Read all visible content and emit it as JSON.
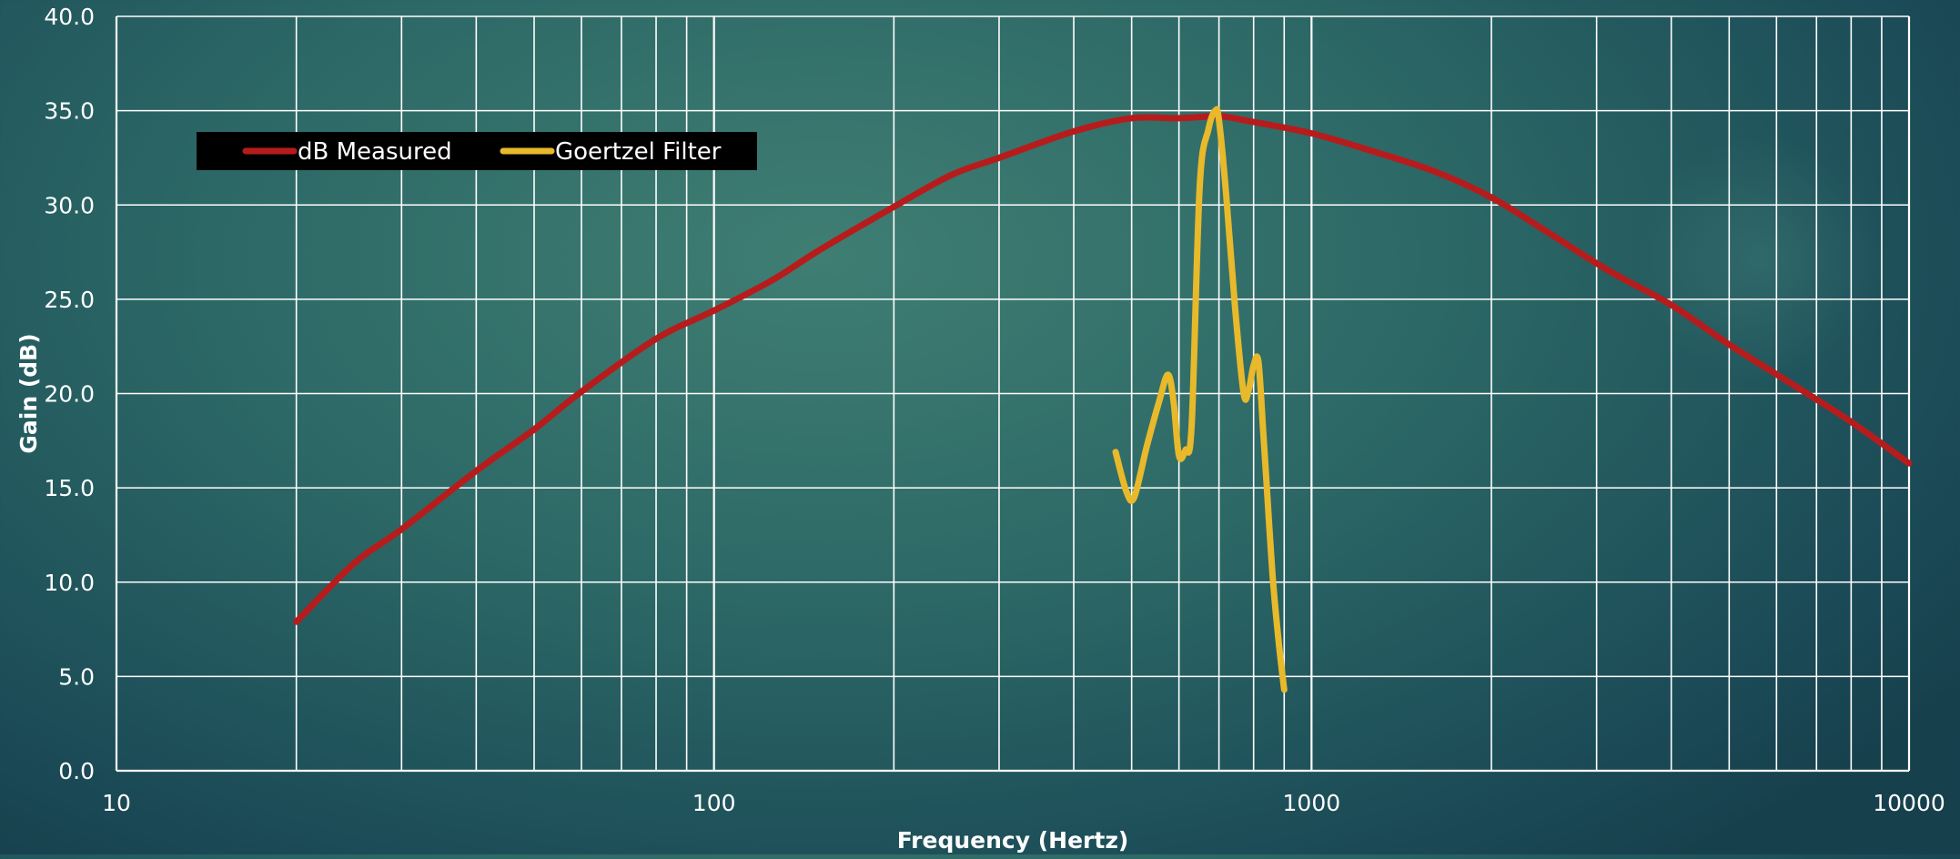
{
  "colors": {
    "grid": "#ffffff",
    "text": "#ffffff",
    "legend_background": "#000000",
    "series_db_measured": "#b71c1c",
    "series_goertzel": "#e8b92b"
  },
  "chart_data": {
    "type": "line",
    "title": "",
    "xlabel": "Frequency (Hertz)",
    "ylabel": "Gain (dB)",
    "x_scale": "log",
    "xlim": [
      10,
      10000
    ],
    "ylim": [
      0,
      40
    ],
    "grid": true,
    "legend_position": "top-left",
    "x_tick_labels": [
      "10",
      "100",
      "1000",
      "10000"
    ],
    "y_tick_labels": [
      "0.0",
      "5.0",
      "10.0",
      "15.0",
      "20.0",
      "25.0",
      "30.0",
      "35.0",
      "40.0"
    ],
    "series": [
      {
        "name": "dB Measured",
        "color": "#b71c1c",
        "x": [
          20,
          25,
          30,
          40,
          50,
          60,
          80,
          100,
          125,
          150,
          200,
          250,
          300,
          400,
          500,
          600,
          700,
          800,
          1000,
          1250,
          1600,
          2000,
          2500,
          3150,
          4000,
          5000,
          6300,
          8000,
          10000
        ],
        "y": [
          7.9,
          11.0,
          12.8,
          15.9,
          18.1,
          20.1,
          22.9,
          24.4,
          26.0,
          27.6,
          29.9,
          31.6,
          32.5,
          33.9,
          34.6,
          34.6,
          34.7,
          34.4,
          33.8,
          32.9,
          31.8,
          30.4,
          28.5,
          26.5,
          24.7,
          22.6,
          20.6,
          18.5,
          16.3
        ]
      },
      {
        "name": "Goertzel Filter",
        "color": "#e8b92b",
        "x": [
          470,
          490,
          505,
          530,
          555,
          575,
          588,
          600,
          615,
          630,
          650,
          672,
          690,
          700,
          720,
          745,
          770,
          785,
          800,
          815,
          830,
          840,
          860,
          880,
          900
        ],
        "y": [
          16.9,
          14.8,
          14.5,
          17.2,
          19.5,
          21.0,
          19.5,
          16.7,
          17.0,
          18.3,
          31.0,
          34.0,
          35.0,
          34.5,
          30.5,
          24.5,
          20.0,
          20.2,
          21.5,
          21.7,
          18.0,
          15.5,
          10.5,
          7.0,
          4.3
        ]
      }
    ]
  }
}
